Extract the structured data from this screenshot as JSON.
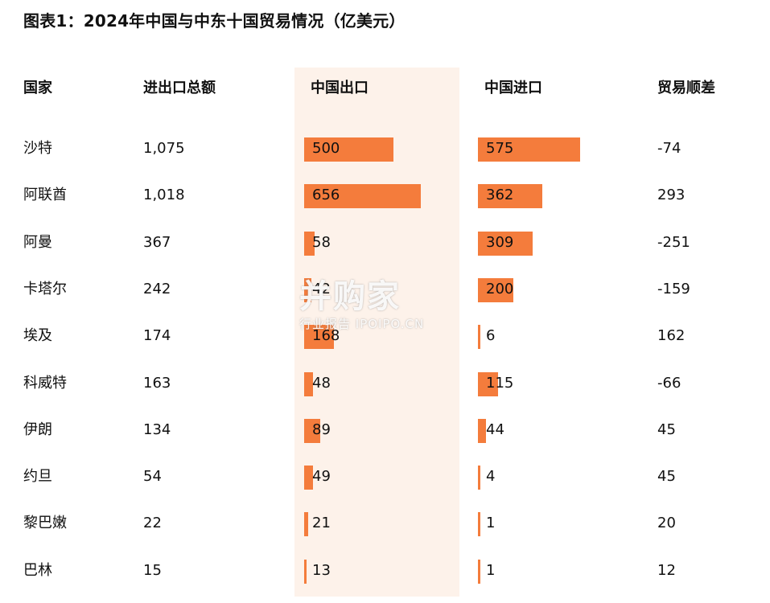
{
  "title": "图表1：2024年中国与中东十国贸易情况（亿美元）",
  "headers": {
    "country": "国家",
    "total": "进出口总额",
    "export": "中国出口",
    "import": "中国进口",
    "balance": "贸易顺差"
  },
  "watermark": {
    "main": "并购家",
    "sub": "行业报告 IPOIPO.CN"
  },
  "colors": {
    "bar": "#f47c3c",
    "export_band": "#fdf2ea"
  },
  "chart_data": {
    "type": "table",
    "columns": [
      "国家",
      "进出口总额",
      "中国出口",
      "中国进口",
      "贸易顺差"
    ],
    "rows": [
      {
        "country": "沙特",
        "total": "1,075",
        "export": 500,
        "import": 575,
        "balance": "-74"
      },
      {
        "country": "阿联酋",
        "total": "1,018",
        "export": 656,
        "import": 362,
        "balance": "293"
      },
      {
        "country": "阿曼",
        "total": "367",
        "export": 58,
        "import": 309,
        "balance": "-251"
      },
      {
        "country": "卡塔尔",
        "total": "242",
        "export": 42,
        "import": 200,
        "balance": "-159"
      },
      {
        "country": "埃及",
        "total": "174",
        "export": 168,
        "import": 6,
        "balance": "162"
      },
      {
        "country": "科威特",
        "total": "163",
        "export": 48,
        "import": 115,
        "balance": "-66"
      },
      {
        "country": "伊朗",
        "total": "134",
        "export": 89,
        "import": 44,
        "balance": "45"
      },
      {
        "country": "约旦",
        "total": "54",
        "export": 49,
        "import": 4,
        "balance": "45"
      },
      {
        "country": "黎巴嫩",
        "total": "22",
        "export": 21,
        "import": 1,
        "balance": "20"
      },
      {
        "country": "巴林",
        "total": "15",
        "export": 13,
        "import": 1,
        "balance": "12"
      }
    ]
  }
}
